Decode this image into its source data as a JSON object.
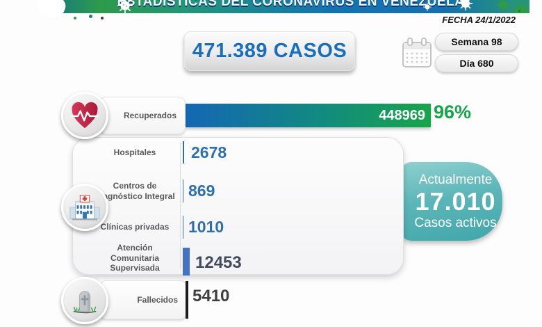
{
  "header": {
    "title": "ESTADÍSTICAS DEL CORONAVIRUS EN VENEZUELA",
    "date_label": "FECHA 24/1/2022"
  },
  "summary": {
    "total_cases": "471.389 CASOS",
    "week_label": "Semana 98",
    "day_label": "Día 680"
  },
  "recovered": {
    "label": "Recuperados",
    "value": 448969,
    "value_display": "448969",
    "percent": "96%"
  },
  "facilities": {
    "rows": [
      {
        "label": "Hospitales",
        "value": 2678,
        "value_display": "2678"
      },
      {
        "label": "Centros de Diagnóstico Integral",
        "value": 869,
        "value_display": "869"
      },
      {
        "label": "Clínicas privadas",
        "value": 1010,
        "value_display": "1010"
      },
      {
        "label": "Atención Comunitaria Supervisada",
        "value": 12453,
        "value_display": "12453"
      }
    ]
  },
  "active_cases": {
    "line1": "Actualmente",
    "value": "17.010",
    "line2": "Casos activos"
  },
  "deceased": {
    "label": "Fallecidos",
    "value": 5410,
    "value_display": "5410"
  },
  "chart_data": {
    "type": "bar",
    "title": "ESTADÍSTICAS DEL CORONAVIRUS EN VENEZUELA",
    "date": "FECHA 24/1/2022",
    "categories": [
      "Recuperados",
      "Hospitales",
      "Centros de Diagnóstico Integral",
      "Clínicas privadas",
      "Atención Comunitaria Supervisada",
      "Fallecidos"
    ],
    "values": [
      448969,
      2678,
      869,
      1010,
      12453,
      5410
    ],
    "max_value": 448969,
    "annotations": [
      "471.389 CASOS",
      "Semana 98",
      "Día 680",
      "96%",
      "Actualmente 17.010 Casos activos"
    ],
    "legend_position": "none",
    "grid": false
  },
  "colors": {
    "banner_green": "#2d9a4b",
    "banner_blue": "#1470ae",
    "bar_gradient_start": "#1467b4",
    "bar_gradient_end": "#17a54a",
    "percent_green": "#17a54a",
    "value_blue": "#2e6fae",
    "value_dark": "#404b5e",
    "active_teal": "#4aacae",
    "deceased_black": "#1b1b1b",
    "cases_blue": "#1a6fbd"
  },
  "icons": [
    "virus-icon",
    "calendar-icon",
    "heart-pulse-icon",
    "hospital-icon",
    "gravestone-icon"
  ]
}
